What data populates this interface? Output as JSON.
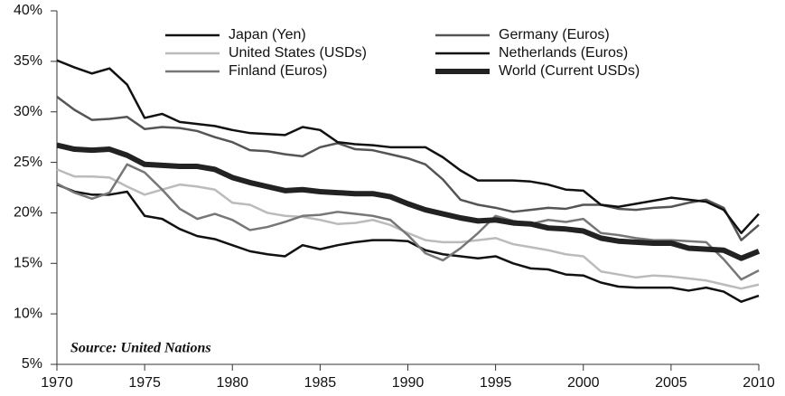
{
  "chart_data": {
    "type": "line",
    "annotation": "Source: United Nations",
    "x": [
      1970,
      1971,
      1972,
      1973,
      1974,
      1975,
      1976,
      1977,
      1978,
      1979,
      1980,
      1981,
      1982,
      1983,
      1984,
      1985,
      1986,
      1987,
      1988,
      1989,
      1990,
      1991,
      1992,
      1993,
      1994,
      1995,
      1996,
      1997,
      1998,
      1999,
      2000,
      2001,
      2002,
      2003,
      2004,
      2005,
      2006,
      2007,
      2008,
      2009,
      2010
    ],
    "series": [
      {
        "name": "Japan (Yen)",
        "color": "#111111",
        "linewidth": 2.5,
        "values": [
          22.8,
          22.1,
          21.8,
          21.8,
          22.1,
          19.7,
          19.4,
          18.4,
          17.7,
          17.4,
          16.8,
          16.2,
          15.9,
          15.7,
          16.8,
          16.4,
          16.8,
          17.1,
          17.3,
          17.3,
          17.2,
          16.3,
          15.9,
          15.7,
          15.5,
          15.7,
          15.0,
          14.5,
          14.4,
          13.9,
          13.8,
          13.1,
          12.7,
          12.6,
          12.6,
          12.6,
          12.3,
          12.6,
          12.2,
          11.2,
          11.8
        ]
      },
      {
        "name": "Germany (Euros)",
        "color": "#555555",
        "linewidth": 2.5,
        "values": [
          31.5,
          30.2,
          29.2,
          29.3,
          29.5,
          28.3,
          28.5,
          28.4,
          28.1,
          27.5,
          27.0,
          26.2,
          26.1,
          25.8,
          25.6,
          26.5,
          26.9,
          26.3,
          26.2,
          25.8,
          25.4,
          24.8,
          23.3,
          21.3,
          20.8,
          20.5,
          20.1,
          20.3,
          20.5,
          20.4,
          20.8,
          20.8,
          20.4,
          20.3,
          20.5,
          20.6,
          21.0,
          21.3,
          20.5,
          17.3,
          18.8
        ]
      },
      {
        "name": "United States (USDs)",
        "color": "#bbbbbb",
        "linewidth": 2.5,
        "values": [
          24.3,
          23.6,
          23.6,
          23.5,
          22.6,
          21.8,
          22.3,
          22.8,
          22.6,
          22.3,
          21.0,
          20.8,
          20.0,
          19.7,
          19.6,
          19.3,
          18.9,
          19.0,
          19.3,
          18.8,
          18.0,
          17.3,
          17.1,
          17.1,
          17.3,
          17.5,
          16.9,
          16.6,
          16.3,
          15.9,
          15.7,
          14.2,
          13.9,
          13.6,
          13.8,
          13.7,
          13.5,
          13.3,
          12.9,
          12.5,
          12.9
        ]
      },
      {
        "name": "Netherlands (Euros)",
        "color": "#111111",
        "linewidth": 2.5,
        "values": [
          35.1,
          34.4,
          33.8,
          34.3,
          32.7,
          29.4,
          29.8,
          29.0,
          28.8,
          28.6,
          28.2,
          27.9,
          27.8,
          27.7,
          28.5,
          28.2,
          27.0,
          26.8,
          26.7,
          26.5,
          26.5,
          26.5,
          25.5,
          24.2,
          23.2,
          23.2,
          23.2,
          23.1,
          22.8,
          22.3,
          22.2,
          20.8,
          20.6,
          20.9,
          21.2,
          21.5,
          21.3,
          21.1,
          20.3,
          18.0,
          19.9
        ]
      },
      {
        "name": "Finland (Euros)",
        "color": "#777777",
        "linewidth": 2.5,
        "values": [
          22.9,
          22.0,
          21.4,
          22.0,
          24.8,
          24.0,
          22.3,
          20.4,
          19.4,
          19.9,
          19.3,
          18.3,
          18.6,
          19.1,
          19.7,
          19.8,
          20.1,
          19.9,
          19.7,
          19.3,
          17.8,
          16.0,
          15.3,
          16.5,
          18.0,
          19.7,
          19.2,
          18.9,
          19.3,
          19.1,
          19.4,
          18.0,
          17.8,
          17.5,
          17.3,
          17.3,
          17.2,
          17.1,
          15.4,
          13.4,
          14.3
        ]
      },
      {
        "name": "World (Current USDs)",
        "color": "#222222",
        "linewidth": 6,
        "values": [
          26.7,
          26.3,
          26.2,
          26.3,
          25.7,
          24.8,
          24.7,
          24.6,
          24.6,
          24.3,
          23.5,
          23.0,
          22.6,
          22.2,
          22.3,
          22.1,
          22.0,
          21.9,
          21.9,
          21.6,
          20.9,
          20.3,
          19.9,
          19.5,
          19.2,
          19.3,
          19.0,
          18.9,
          18.5,
          18.4,
          18.2,
          17.5,
          17.2,
          17.1,
          17.0,
          17.0,
          16.5,
          16.4,
          16.3,
          15.5,
          16.2
        ]
      }
    ],
    "xlim": [
      1970,
      2010
    ],
    "xticks": [
      1970,
      1975,
      1980,
      1985,
      1990,
      1995,
      2000,
      2005,
      2010
    ],
    "ylim": [
      5,
      40
    ],
    "yticks": [
      {
        "value": 5,
        "label": "5%"
      },
      {
        "value": 10,
        "label": "10%"
      },
      {
        "value": 15,
        "label": "15%"
      },
      {
        "value": 20,
        "label": "20%"
      },
      {
        "value": 25,
        "label": "25%"
      },
      {
        "value": 30,
        "label": "30%"
      },
      {
        "value": 35,
        "label": "35%"
      },
      {
        "value": 40,
        "label": "40%"
      }
    ],
    "grid": false
  }
}
